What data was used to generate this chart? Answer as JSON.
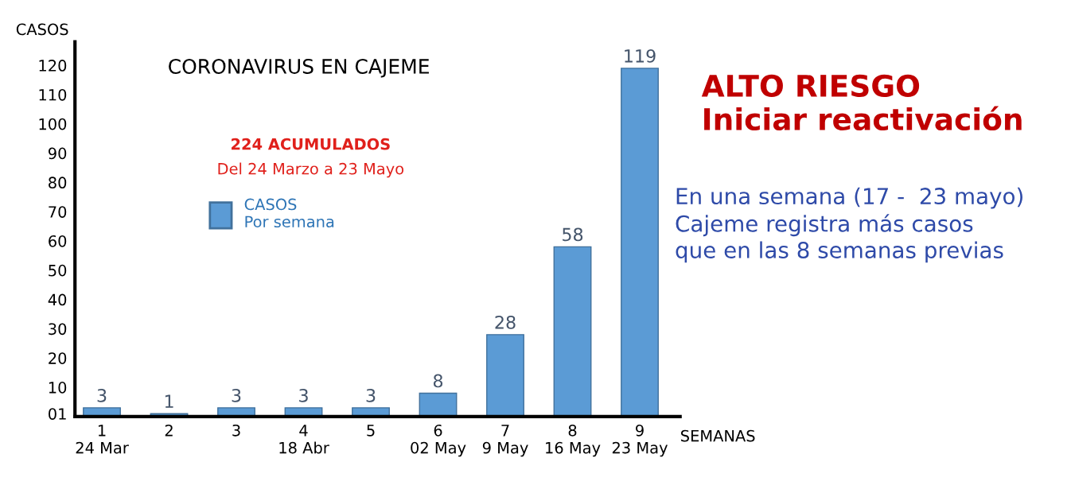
{
  "chart_data": {
    "type": "bar",
    "title": "CORONAVIRUS EN CAJEME",
    "xlabel": "SEMANAS",
    "ylabel": "CASOS",
    "categories": [
      "1\n24 Mar",
      "2",
      "3",
      "4\n18 Abr",
      "5",
      "6\n02 May",
      "7\n9 May",
      "8\n16 May",
      "9\n23 May"
    ],
    "series": [
      {
        "name": "CASOS\nPor semana",
        "color": "#5b9bd5",
        "values": [
          3,
          1,
          3,
          3,
          3,
          8,
          28,
          58,
          119
        ]
      }
    ],
    "data_labels": true,
    "ylim": [
      0,
      128
    ],
    "yticks": [
      {
        "value": 1,
        "label": "01"
      },
      10,
      20,
      30,
      40,
      50,
      60,
      70,
      80,
      90,
      100,
      110,
      120
    ],
    "grid": false,
    "legend": "top left",
    "annotations": [
      "224 ACUMULADOS",
      "Del 24 Marzo a 23 Mayo",
      "ALTO RIESGO\nIniciar reactivación",
      "En una semana (17 -  23 mayo)\nCajeme registra más casos\nque en las 8 semanas previas"
    ]
  }
}
